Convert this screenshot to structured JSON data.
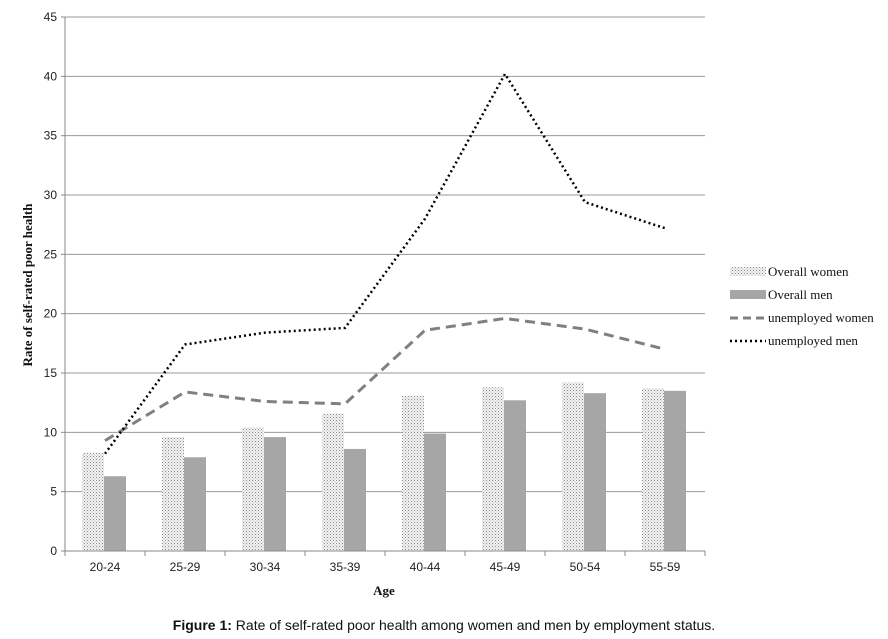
{
  "chart_data": {
    "type": "bar",
    "categories": [
      "20-24",
      "25-29",
      "30-34",
      "35-39",
      "40-44",
      "45-49",
      "50-54",
      "55-59"
    ],
    "xlabel": "Age",
    "ylabel": "Rate of self-rated poor health",
    "ylim": [
      0,
      45
    ],
    "yticks": [
      0,
      5,
      10,
      15,
      20,
      25,
      30,
      35,
      40,
      45
    ],
    "grid": true,
    "legend_position": "right",
    "series": [
      {
        "name": "Overall women",
        "kind": "bar",
        "style": "dotted-fill",
        "color": "#d9d9d9",
        "values": [
          8.3,
          9.6,
          10.4,
          11.6,
          13.1,
          13.8,
          14.2,
          13.7
        ]
      },
      {
        "name": "Overall men",
        "kind": "bar",
        "style": "solid",
        "color": "#a6a6a6",
        "values": [
          6.3,
          7.9,
          9.6,
          8.6,
          9.9,
          12.7,
          13.3,
          13.5
        ]
      },
      {
        "name": "unemployed women",
        "kind": "line",
        "style": "dashed",
        "color": "#808080",
        "values": [
          9.3,
          13.4,
          12.6,
          12.4,
          18.6,
          19.6,
          18.7,
          17.0
        ]
      },
      {
        "name": "unemployed men",
        "kind": "line",
        "style": "dotted",
        "color": "#000000",
        "values": [
          8.2,
          17.4,
          18.4,
          18.8,
          28.0,
          40.2,
          29.4,
          27.2
        ]
      }
    ]
  },
  "caption": {
    "label": "Figure 1:",
    "text": " Rate of self-rated poor health among women and men by employment status."
  }
}
